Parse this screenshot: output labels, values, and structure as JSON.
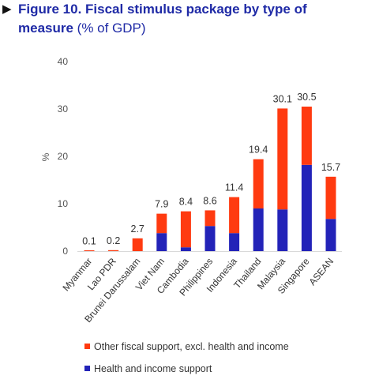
{
  "figure": {
    "marker": "▶",
    "title_line1": "Figure 10. Fiscal stimulus package by type of",
    "title_line2_bold": "measure",
    "title_unit": " (% of GDP)"
  },
  "chart_data": {
    "type": "bar",
    "stacked": true,
    "categories": [
      "Myanmar",
      "Lao PDR",
      "Brunei Darussalam",
      "Viet Nam",
      "Cambodia",
      "Philippines",
      "Indonesia",
      "Thailand",
      "Malaysia",
      "Singapore",
      "ASEAN"
    ],
    "totals": [
      0.1,
      0.2,
      2.7,
      7.9,
      8.4,
      8.6,
      11.4,
      19.4,
      30.1,
      30.5,
      15.7
    ],
    "total_labels": [
      "0.1",
      "0.2",
      "2.7",
      "7.9",
      "8.4",
      "8.6",
      "11.4",
      "19.4",
      "30.1",
      "30.5",
      "15.7"
    ],
    "series": [
      {
        "name": "Health and income support",
        "color": "#2323b8",
        "values": [
          0,
          0,
          0,
          3.8,
          0.8,
          5.3,
          3.8,
          9.0,
          8.8,
          18.2,
          6.8
        ]
      },
      {
        "name": "Other fiscal support, excl. health and income",
        "color": "#ff3a10",
        "values": [
          0.1,
          0.2,
          2.7,
          4.1,
          7.6,
          3.3,
          7.6,
          10.4,
          21.3,
          12.3,
          8.9
        ]
      }
    ],
    "yticks": [
      "0",
      "10",
      "20",
      "30",
      "40"
    ],
    "ylim": [
      0,
      40
    ],
    "ylabel": "%",
    "xlabel": "",
    "grid": false,
    "legend_position": "bottom",
    "legend": [
      {
        "label": "Other fiscal support, excl. health and income",
        "color": "#ff3a10"
      },
      {
        "label": "Health and income support",
        "color": "#2323b8"
      }
    ]
  }
}
